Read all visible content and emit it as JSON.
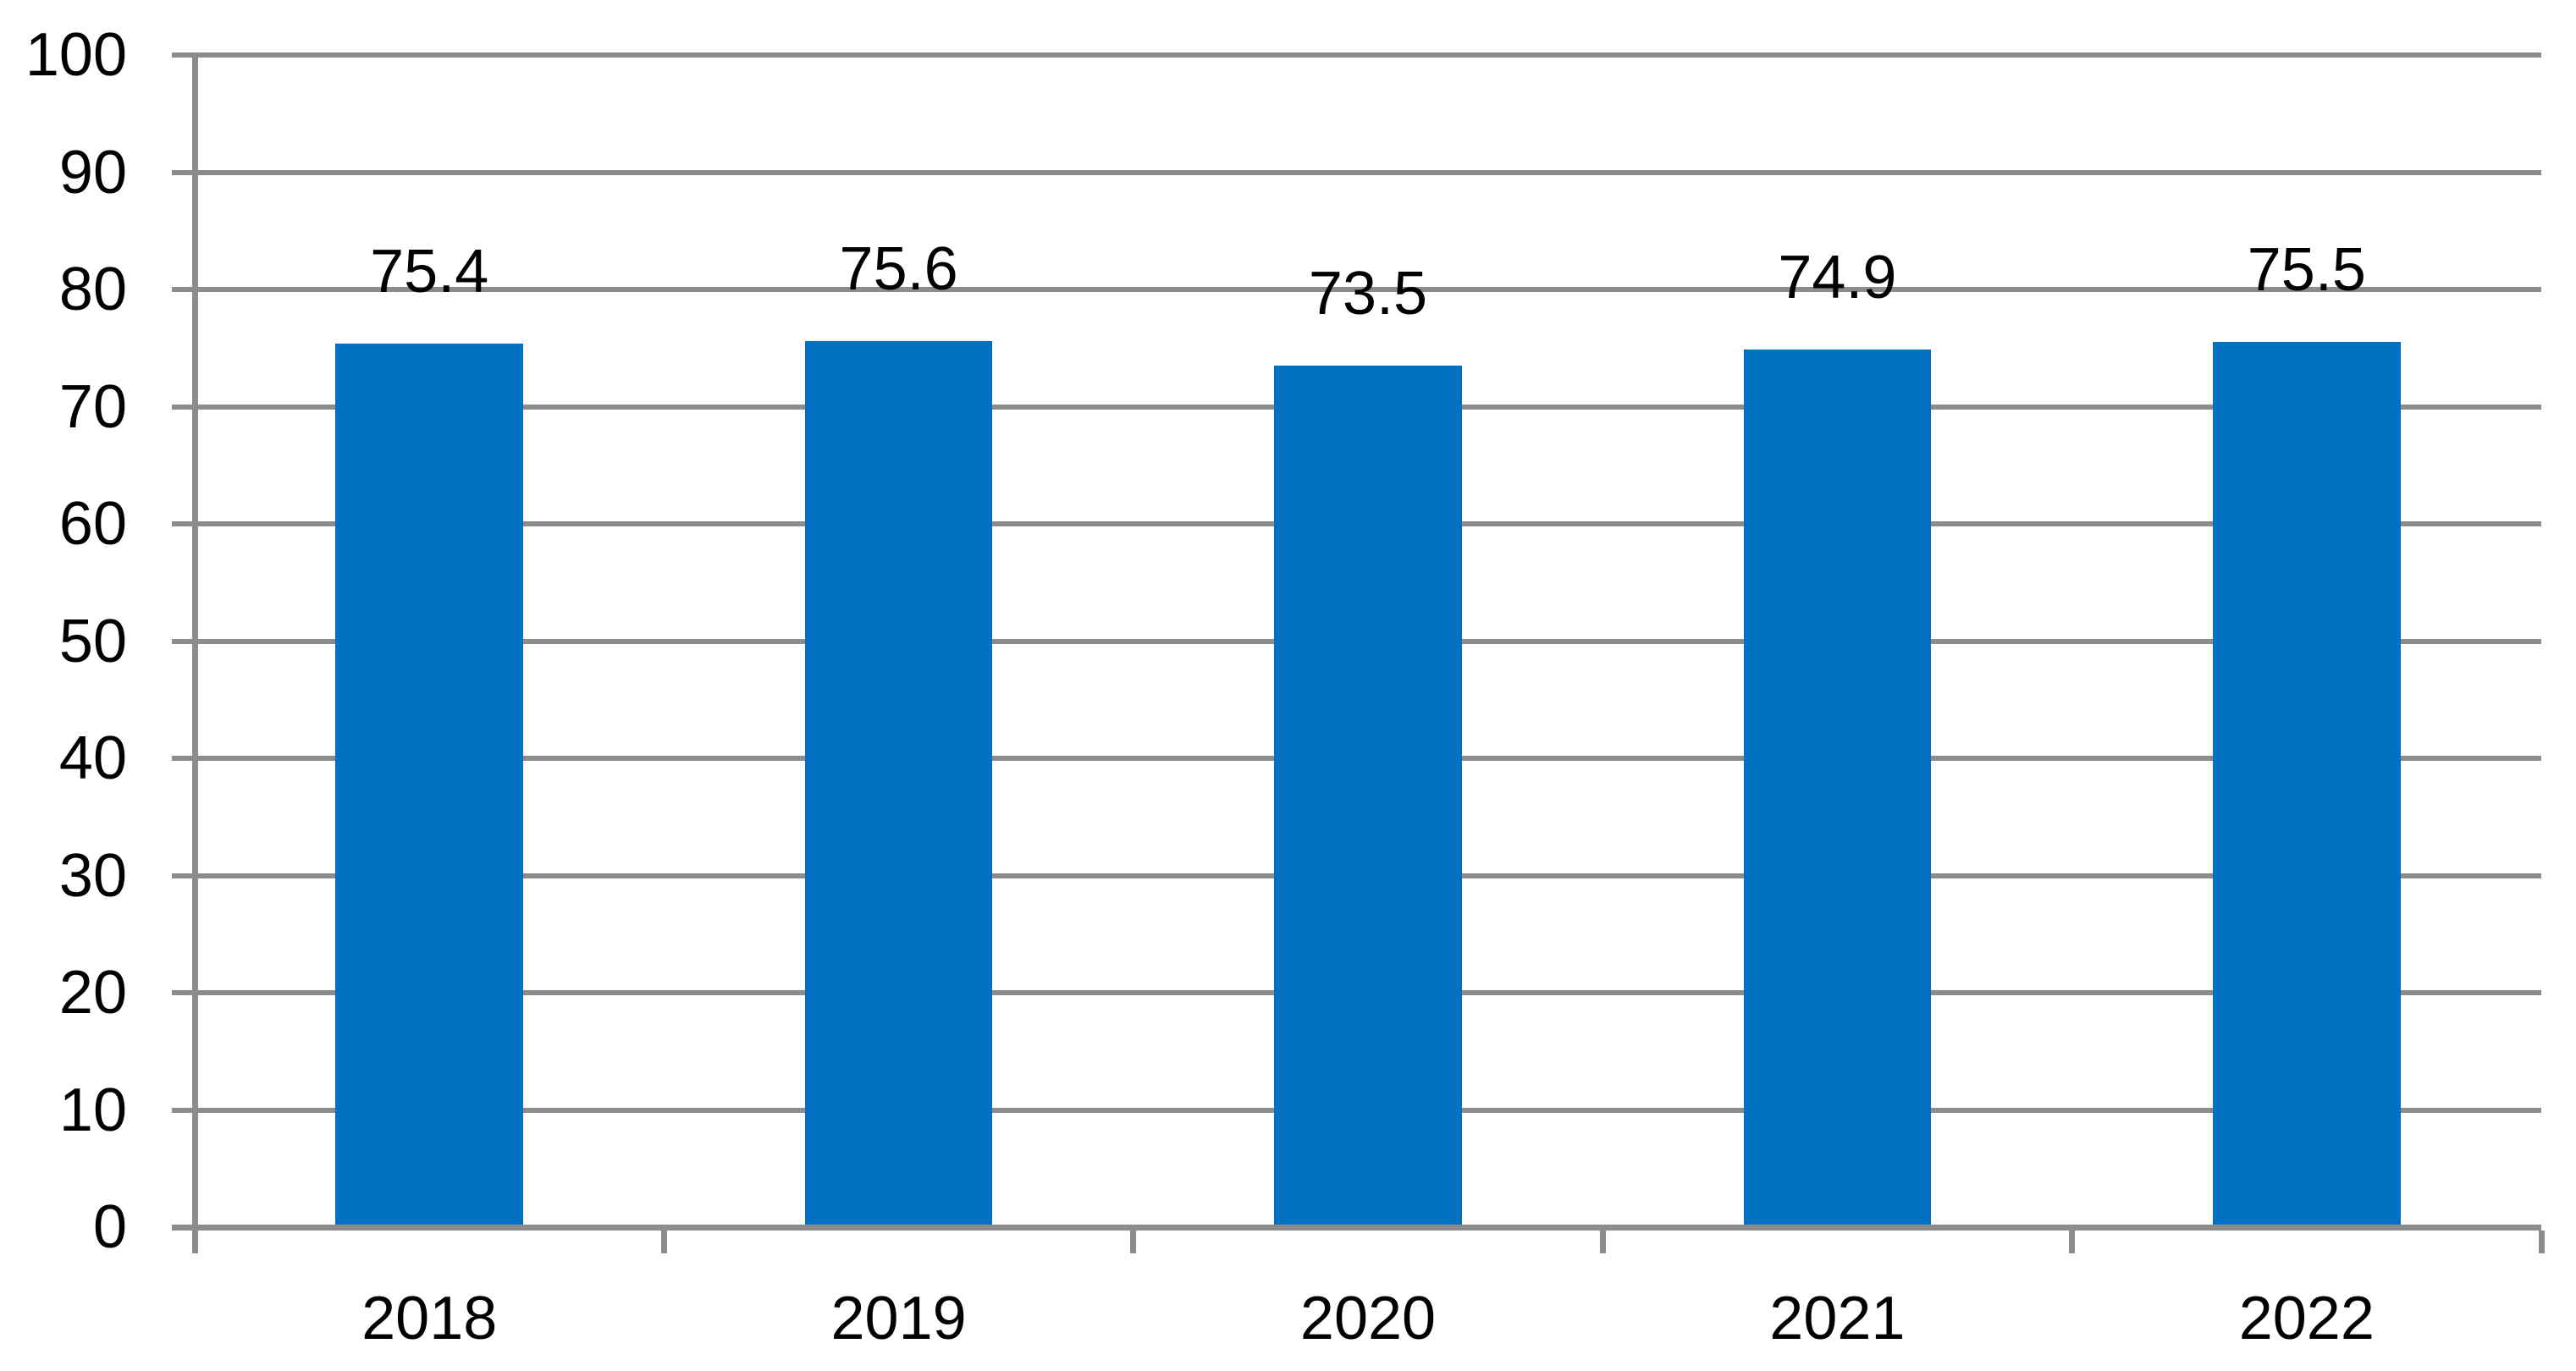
{
  "chart_data": {
    "type": "bar",
    "categories": [
      "2018",
      "2019",
      "2020",
      "2021",
      "2022"
    ],
    "values": [
      75.4,
      75.6,
      73.5,
      74.9,
      75.5
    ],
    "data_labels": [
      "75.4",
      "75.6",
      "73.5",
      "74.9",
      "75.5"
    ],
    "series_count": 1,
    "title": "",
    "xlabel": "",
    "ylabel": "",
    "ylim": [
      0,
      100
    ],
    "ytick_interval": 10,
    "ytick_labels": [
      "0",
      "10",
      "20",
      "30",
      "40",
      "50",
      "60",
      "70",
      "80",
      "90",
      "100"
    ],
    "grid": "horizontal gridlines on, ticks outside both axes",
    "legend": "none",
    "bar_gap_ratio": 0.6,
    "colors": {
      "bar_fill": "#0271C2",
      "gridline": "#8C8C8C",
      "axis_line": "#8C8C8C",
      "text": "#000000",
      "background": "#FFFFFF"
    }
  }
}
